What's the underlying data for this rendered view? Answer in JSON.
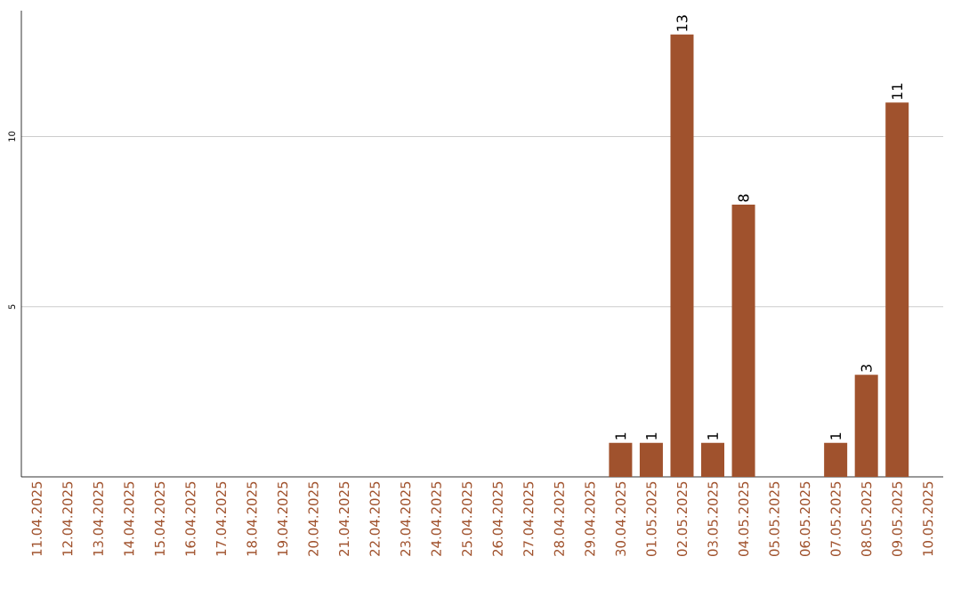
{
  "chart_data": {
    "type": "bar",
    "categories": [
      "11.04.2025",
      "12.04.2025",
      "13.04.2025",
      "14.04.2025",
      "15.04.2025",
      "16.04.2025",
      "17.04.2025",
      "18.04.2025",
      "19.04.2025",
      "20.04.2025",
      "21.04.2025",
      "22.04.2025",
      "23.04.2025",
      "24.04.2025",
      "25.04.2025",
      "26.04.2025",
      "27.04.2025",
      "28.04.2025",
      "29.04.2025",
      "30.04.2025",
      "01.05.2025",
      "02.05.2025",
      "03.05.2025",
      "04.05.2025",
      "05.05.2025",
      "06.05.2025",
      "07.05.2025",
      "08.05.2025",
      "09.05.2025",
      "10.05.2025"
    ],
    "values": [
      0,
      0,
      0,
      0,
      0,
      0,
      0,
      0,
      0,
      0,
      0,
      0,
      0,
      0,
      0,
      0,
      0,
      0,
      0,
      1,
      1,
      13,
      1,
      8,
      0,
      0,
      1,
      3,
      11,
      0
    ],
    "value_labels": [
      null,
      null,
      null,
      null,
      null,
      null,
      null,
      null,
      null,
      null,
      null,
      null,
      null,
      null,
      null,
      null,
      null,
      null,
      null,
      "1",
      "1",
      "13",
      "1",
      "8",
      null,
      null,
      "1",
      "3",
      "11",
      null
    ],
    "color": "#a0522d",
    "ylim": [
      0,
      13.7
    ],
    "yticks": [
      5,
      10
    ],
    "grid": "y"
  }
}
